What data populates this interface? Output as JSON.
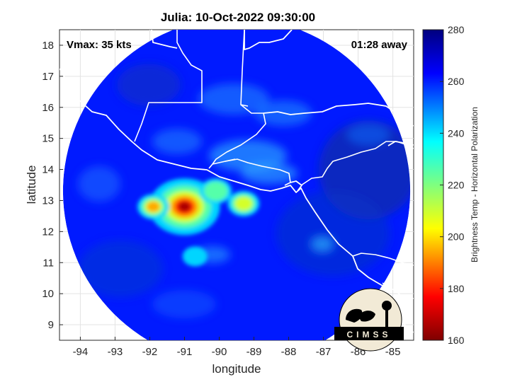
{
  "title": "Julia: 10-Oct-2022 09:30:00",
  "annotations": {
    "vmax": "Vmax: 35 kts",
    "away": "01:28 away"
  },
  "axes": {
    "xlabel": "longitude",
    "ylabel": "latitude",
    "xlim": [
      -94.6,
      -84.4
    ],
    "ylim": [
      8.5,
      18.5
    ],
    "xticks": [
      -94,
      -93,
      -92,
      -91,
      -90,
      -89,
      -88,
      -87,
      -86,
      -85
    ],
    "yticks": [
      9,
      10,
      11,
      12,
      13,
      14,
      15,
      16,
      17,
      18
    ],
    "grid": true
  },
  "colorbar": {
    "label": "Brightness Temp - Horizontal Polarization",
    "min": 160,
    "max": 280,
    "ticks": [
      160,
      180,
      200,
      220,
      240,
      260,
      280
    ],
    "colormap": "jet"
  },
  "logo": {
    "text": "CIMSS"
  },
  "chart_data": {
    "type": "heatmap",
    "title": "Julia: 10-Oct-2022 09:30:00",
    "xlabel": "longitude",
    "ylabel": "latitude",
    "xlim": [
      -94.6,
      -84.4
    ],
    "ylim": [
      8.5,
      18.5
    ],
    "swath": {
      "center_lon": -89.5,
      "center_lat": 13.3,
      "radius_deg": 5.0
    },
    "background_value": 262,
    "features": [
      {
        "name": "deep-convection-core",
        "lon": -91.0,
        "lat": 12.8,
        "min_bt": 162
      },
      {
        "name": "convection-west",
        "lon": -91.9,
        "lat": 12.8,
        "min_bt": 190
      },
      {
        "name": "convection-east",
        "lon": -89.3,
        "lat": 12.9,
        "min_bt": 200
      },
      {
        "name": "convection-north",
        "lon": -90.1,
        "lat": 13.3,
        "min_bt": 215
      },
      {
        "name": "rainband-south",
        "lon": -90.7,
        "lat": 11.2,
        "min_bt": 230
      }
    ]
  },
  "colors": {
    "colormap_stops": [
      "#7f0000",
      "#ff0000",
      "#ffff00",
      "#00ffff",
      "#0000ff",
      "#00007f"
    ],
    "background_field": "#0d3fe6",
    "coastline": "#ffffff",
    "plot_background": "#ffffff"
  }
}
